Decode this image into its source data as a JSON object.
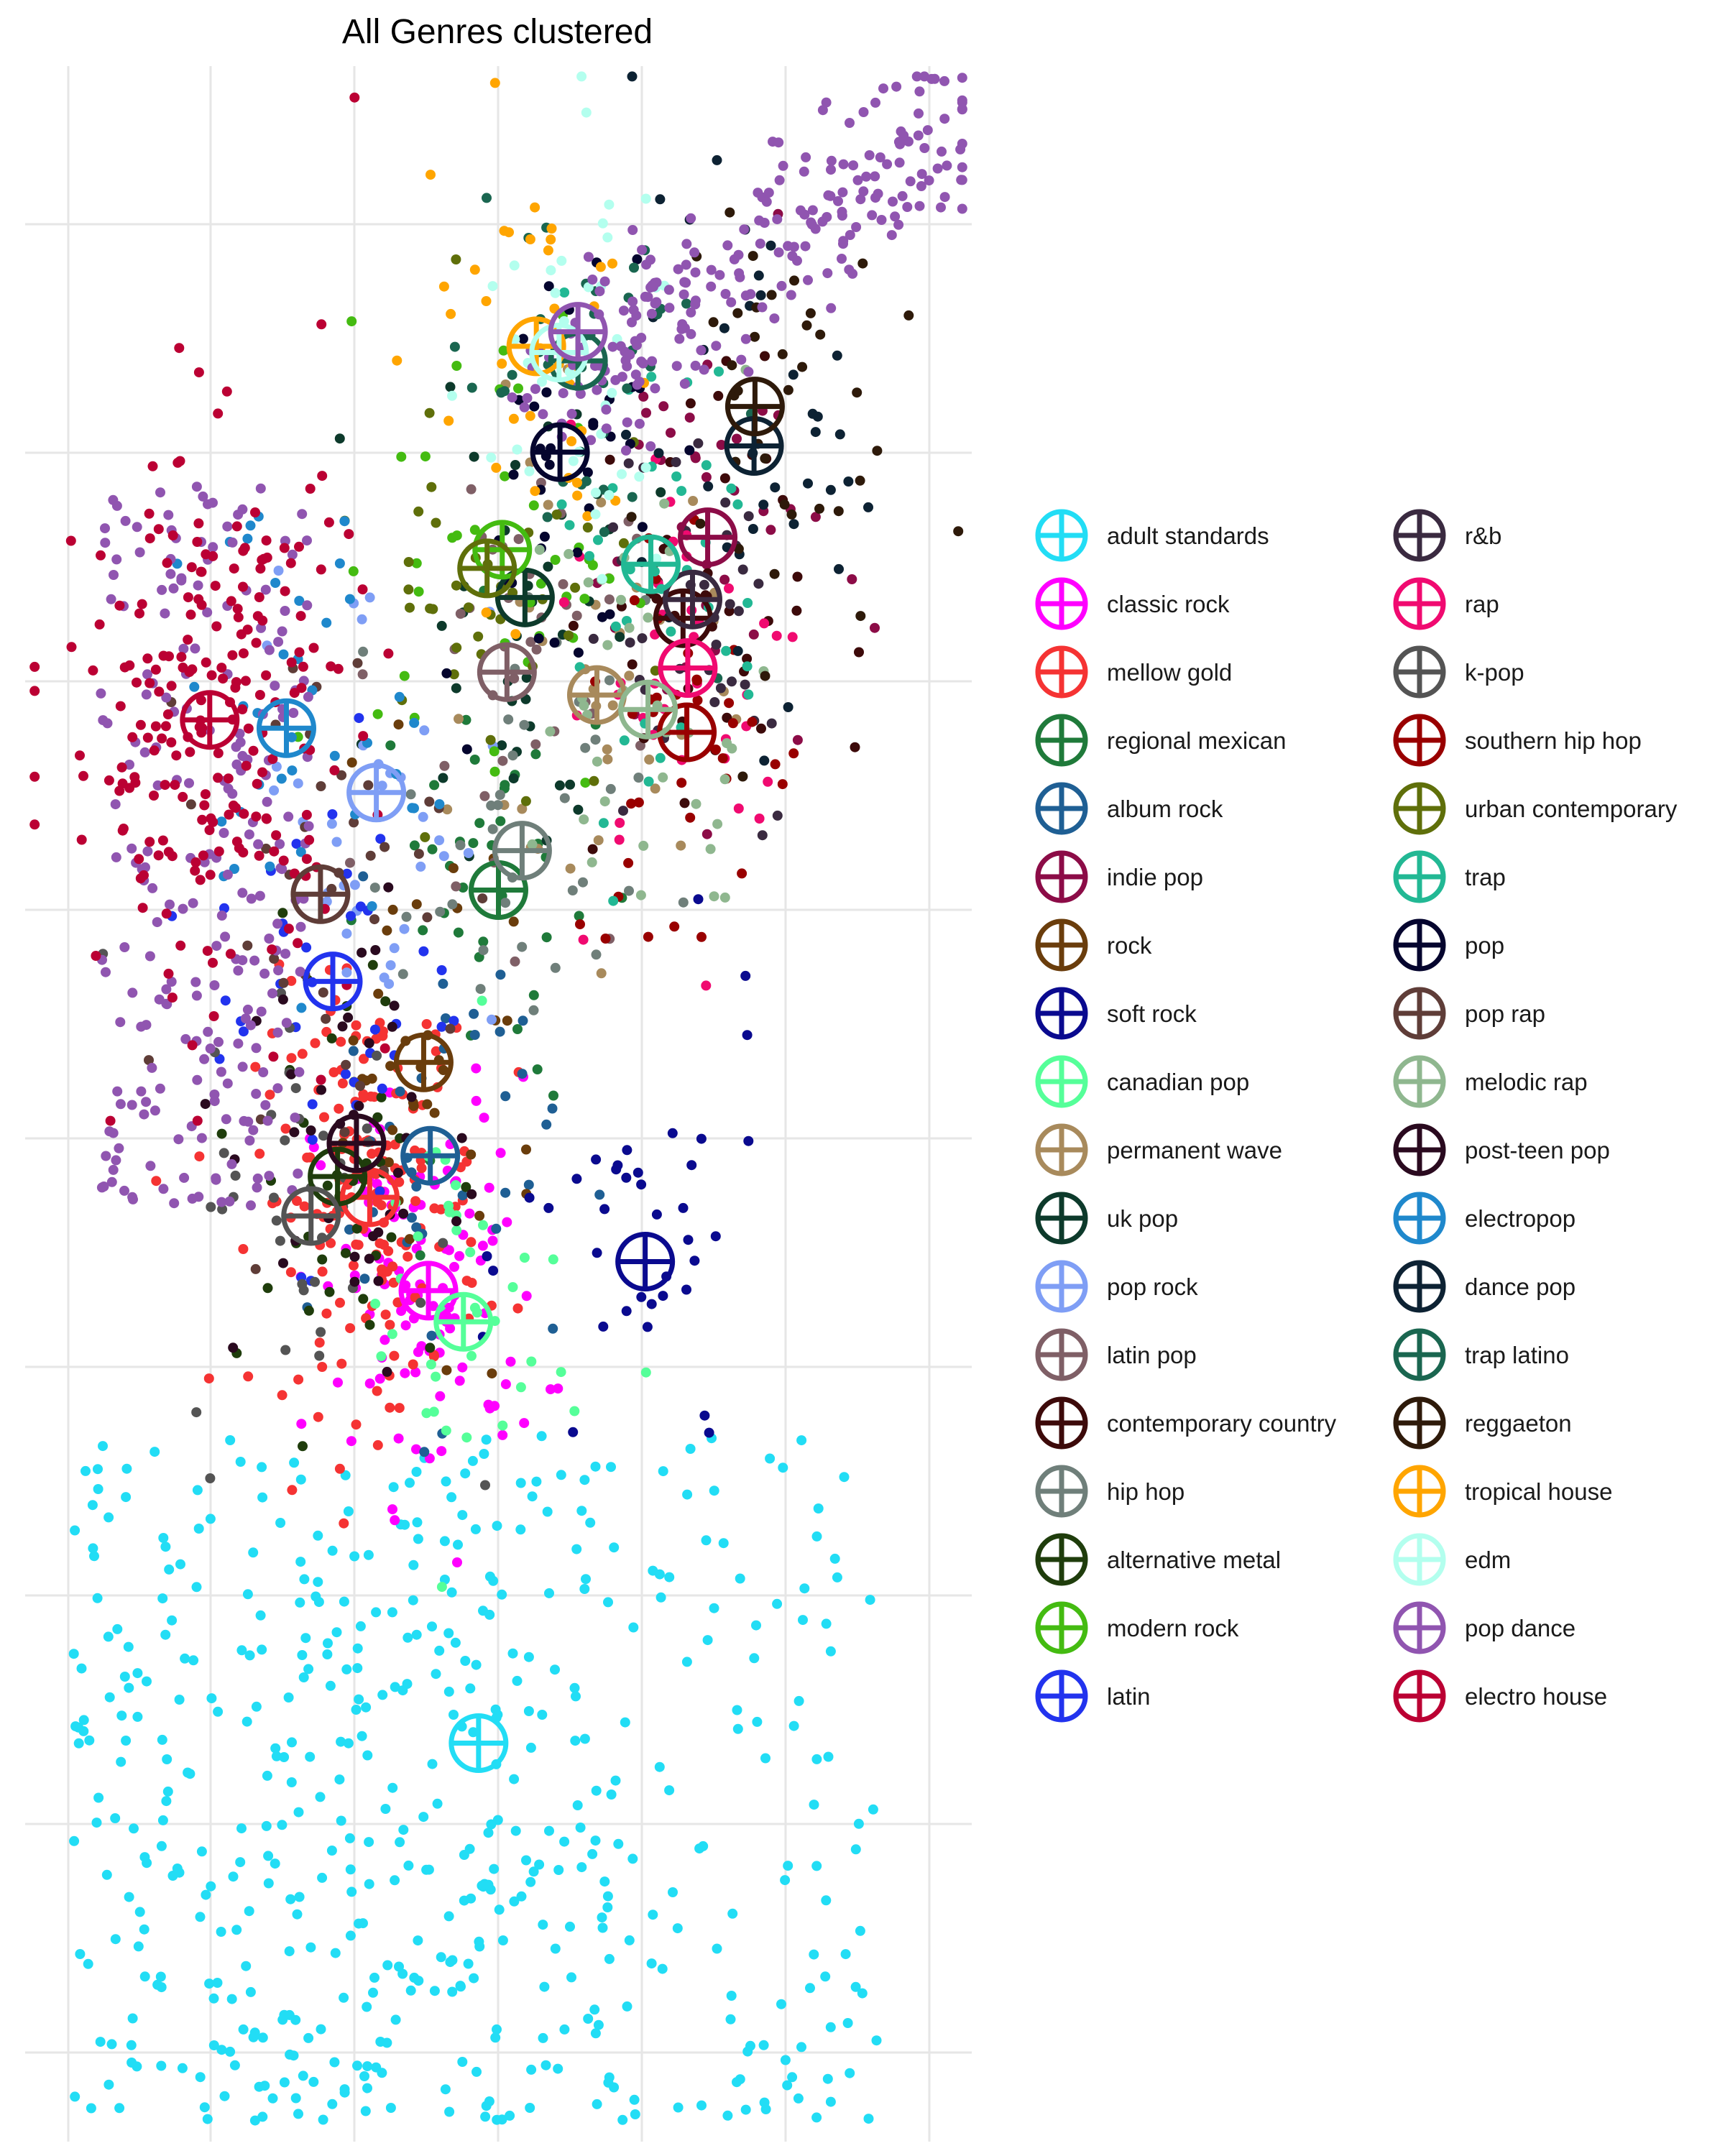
{
  "chart_data": {
    "type": "scatter",
    "title": "All Genres clustered",
    "xlabel": "",
    "ylabel": "",
    "x_tick_labels_visible": false,
    "y_tick_labels_visible": false,
    "grid": true,
    "legend_position": "right",
    "legend_columns": 2,
    "marker": "circle-plus for cluster centroids, small dots for tracks",
    "series": [
      {
        "name": "adult standards",
        "color": "#22DDF5",
        "centroid": [
          0.479,
          0.192
        ]
      },
      {
        "name": "classic rock",
        "color": "#FF00FF",
        "centroid": [
          0.426,
          0.41
        ]
      },
      {
        "name": "mellow gold",
        "color": "#F53333",
        "centroid": [
          0.364,
          0.455
        ]
      },
      {
        "name": "regional mexican",
        "color": "#1F7A3A",
        "centroid": [
          0.5,
          0.603
        ]
      },
      {
        "name": "album rock",
        "color": "#1F5F94",
        "centroid": [
          0.428,
          0.475
        ]
      },
      {
        "name": "indie pop",
        "color": "#8C0C47",
        "centroid": [
          0.721,
          0.773
        ]
      },
      {
        "name": "rock",
        "color": "#6A3D0C",
        "centroid": [
          0.421,
          0.52
        ]
      },
      {
        "name": "soft rock",
        "color": "#0A0A8F",
        "centroid": [
          0.655,
          0.424
        ]
      },
      {
        "name": "canadian pop",
        "color": "#55FF99",
        "centroid": [
          0.463,
          0.395
        ]
      },
      {
        "name": "permanent wave",
        "color": "#A88A5C",
        "centroid": [
          0.604,
          0.697
        ]
      },
      {
        "name": "uk pop",
        "color": "#0D3A2B",
        "centroid": [
          0.528,
          0.744
        ]
      },
      {
        "name": "pop rock",
        "color": "#7F9EF5",
        "centroid": [
          0.371,
          0.65
        ]
      },
      {
        "name": "latin pop",
        "color": "#7F5F66",
        "centroid": [
          0.509,
          0.708
        ]
      },
      {
        "name": "contemporary country",
        "color": "#3D0A0A",
        "centroid": [
          0.695,
          0.734
        ]
      },
      {
        "name": "hip hop",
        "color": "#6F7F7A",
        "centroid": [
          0.525,
          0.622
        ]
      },
      {
        "name": "alternative metal",
        "color": "#1F3D0C",
        "centroid": [
          0.33,
          0.465
        ]
      },
      {
        "name": "modern rock",
        "color": "#44BB11",
        "centroid": [
          0.504,
          0.767
        ]
      },
      {
        "name": "latin",
        "color": "#2233EE",
        "centroid": [
          0.325,
          0.559
        ]
      },
      {
        "name": "r&b",
        "color": "#3A2A40",
        "centroid": [
          0.705,
          0.743
        ]
      },
      {
        "name": "rap",
        "color": "#F00A70",
        "centroid": [
          0.7,
          0.71
        ]
      },
      {
        "name": "k-pop",
        "color": "#545454",
        "centroid": [
          0.302,
          0.446
        ]
      },
      {
        "name": "southern hip hop",
        "color": "#990000",
        "centroid": [
          0.699,
          0.679
        ]
      },
      {
        "name": "urban contemporary",
        "color": "#5F6F0A",
        "centroid": [
          0.488,
          0.758
        ]
      },
      {
        "name": "trap",
        "color": "#22B894",
        "centroid": [
          0.661,
          0.76
        ]
      },
      {
        "name": "pop",
        "color": "#05052E",
        "centroid": [
          0.565,
          0.814
        ]
      },
      {
        "name": "pop rap",
        "color": "#5F3D38",
        "centroid": [
          0.312,
          0.601
        ]
      },
      {
        "name": "melodic rap",
        "color": "#8FB78F",
        "centroid": [
          0.658,
          0.69
        ]
      },
      {
        "name": "post-teen pop",
        "color": "#2A0A1F",
        "centroid": [
          0.35,
          0.481
        ]
      },
      {
        "name": "electropop",
        "color": "#1F88CC",
        "centroid": [
          0.276,
          0.681
        ]
      },
      {
        "name": "dance pop",
        "color": "#0D2233",
        "centroid": [
          0.77,
          0.817
        ]
      },
      {
        "name": "trap latino",
        "color": "#1A6650",
        "centroid": [
          0.584,
          0.858
        ]
      },
      {
        "name": "reggaeton",
        "color": "#2E1A0A",
        "centroid": [
          0.771,
          0.836
        ]
      },
      {
        "name": "tropical house",
        "color": "#FFA500",
        "centroid": [
          0.54,
          0.865
        ]
      },
      {
        "name": "edm",
        "color": "#B3FFEE",
        "centroid": [
          0.564,
          0.862
        ]
      },
      {
        "name": "pop dance",
        "color": "#9055B0",
        "centroid": [
          0.584,
          0.872
        ]
      },
      {
        "name": "electro house",
        "color": "#BB0033",
        "centroid": [
          0.195,
          0.685
        ]
      }
    ],
    "xlim": [
      0,
      1
    ],
    "ylim": [
      0,
      1
    ]
  }
}
